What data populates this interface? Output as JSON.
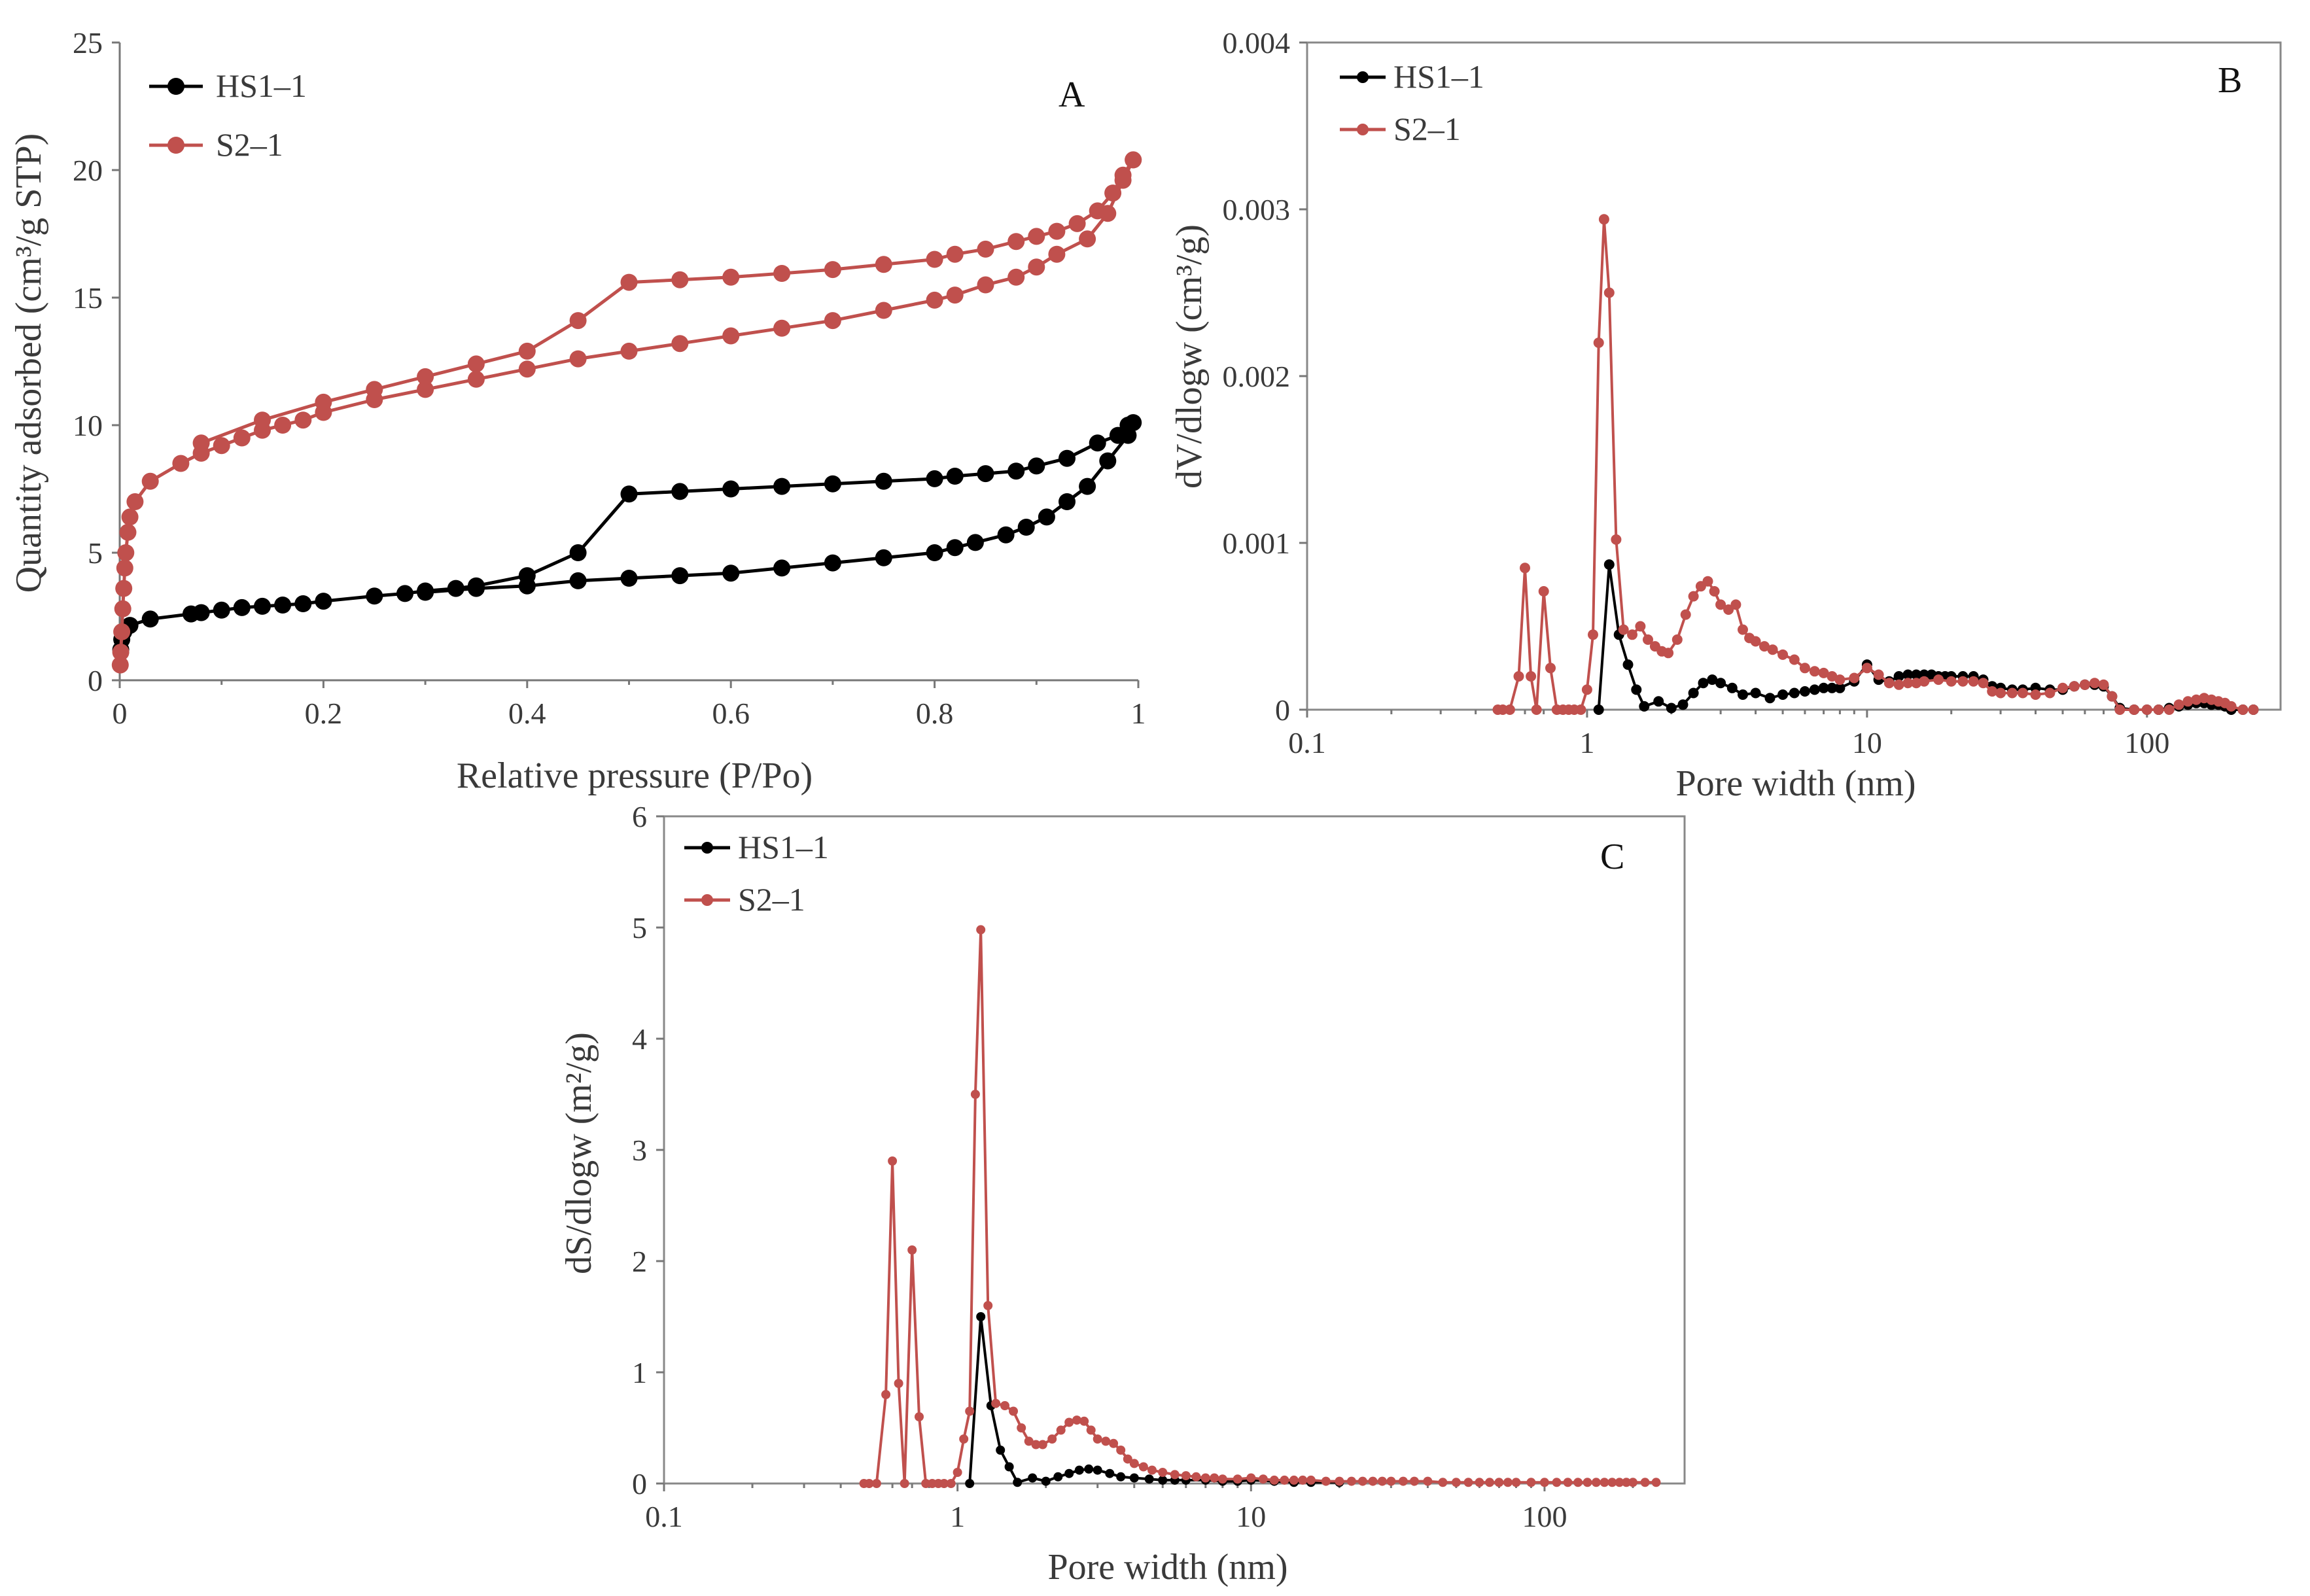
{
  "colors": {
    "hs": "#000000",
    "s2": "#c0504d",
    "axis": "#777777"
  },
  "chart_data": [
    {
      "id": "A",
      "type": "line",
      "panel_label": "A",
      "xlabel": "Relative pressure (P/Po)",
      "ylabel": "Quantity adsorbed (cm³/g STP)",
      "xscale": "linear",
      "xlim": [
        0,
        1
      ],
      "ylim": [
        0,
        25
      ],
      "xticks": [
        0,
        0.2,
        0.4,
        0.6,
        0.8,
        1
      ],
      "xtick_labels": [
        "0",
        "0.2",
        "0.4",
        "0.6",
        "0.8",
        "1"
      ],
      "yticks": [
        0,
        5,
        10,
        15,
        20,
        25
      ],
      "ytick_labels": [
        "0",
        "5",
        "10",
        "15",
        "20",
        "25"
      ],
      "legend_position": "top-left",
      "series": [
        {
          "name": "HS1–1",
          "color": "#000000",
          "x": [
            0.001,
            0.002,
            0.004,
            0.01,
            0.03,
            0.07,
            0.08,
            0.1,
            0.12,
            0.14,
            0.16,
            0.18,
            0.2,
            0.25,
            0.28,
            0.3,
            0.33,
            0.35,
            0.4,
            0.45,
            0.5,
            0.55,
            0.6,
            0.65,
            0.7,
            0.75,
            0.8,
            0.82,
            0.85,
            0.88,
            0.9,
            0.93,
            0.96,
            0.98,
            0.99,
            0.995,
            0.99,
            0.97,
            0.95,
            0.93,
            0.91,
            0.89,
            0.87,
            0.84,
            0.82,
            0.8,
            0.75,
            0.7,
            0.65,
            0.6,
            0.55,
            0.5,
            0.45,
            0.4,
            0.35,
            0.3
          ],
          "values": [
            1.2,
            1.6,
            1.9,
            2.15,
            2.4,
            2.6,
            2.65,
            2.75,
            2.85,
            2.9,
            2.95,
            3.0,
            3.1,
            3.3,
            3.4,
            3.5,
            3.6,
            3.7,
            4.1,
            5.0,
            7.3,
            7.4,
            7.5,
            7.6,
            7.7,
            7.8,
            7.9,
            8.0,
            8.1,
            8.2,
            8.4,
            8.7,
            9.3,
            9.6,
            10.0,
            10.1,
            9.6,
            8.6,
            7.6,
            7.0,
            6.4,
            6.0,
            5.7,
            5.4,
            5.2,
            5.0,
            4.8,
            4.6,
            4.4,
            4.2,
            4.1,
            4.0,
            3.9,
            3.7,
            3.6,
            3.45
          ]
        },
        {
          "name": "S2–1",
          "color": "#c0504d",
          "x": [
            0.0005,
            0.001,
            0.002,
            0.003,
            0.004,
            0.005,
            0.006,
            0.008,
            0.01,
            0.015,
            0.03,
            0.06,
            0.08,
            0.1,
            0.12,
            0.14,
            0.16,
            0.18,
            0.2,
            0.25,
            0.3,
            0.35,
            0.4,
            0.45,
            0.5,
            0.55,
            0.6,
            0.65,
            0.7,
            0.75,
            0.8,
            0.82,
            0.85,
            0.88,
            0.9,
            0.92,
            0.95,
            0.97,
            0.985,
            0.995,
            0.995,
            0.985,
            0.975,
            0.96,
            0.94,
            0.92,
            0.9,
            0.88,
            0.85,
            0.82,
            0.8,
            0.75,
            0.7,
            0.65,
            0.6,
            0.55,
            0.5,
            0.45,
            0.4,
            0.35,
            0.3,
            0.25,
            0.2,
            0.14,
            0.08
          ],
          "values": [
            0.6,
            1.1,
            1.9,
            2.8,
            3.6,
            4.4,
            5.0,
            5.8,
            6.4,
            7.0,
            7.8,
            8.5,
            8.9,
            9.2,
            9.5,
            9.8,
            10.0,
            10.2,
            10.5,
            11.0,
            11.4,
            11.8,
            12.2,
            12.6,
            12.9,
            13.2,
            13.5,
            13.8,
            14.1,
            14.5,
            14.9,
            15.1,
            15.5,
            15.8,
            16.2,
            16.7,
            17.3,
            18.3,
            19.6,
            20.4,
            20.4,
            19.8,
            19.1,
            18.4,
            17.9,
            17.6,
            17.4,
            17.2,
            16.9,
            16.7,
            16.5,
            16.3,
            16.1,
            15.95,
            15.8,
            15.7,
            15.6,
            14.1,
            12.9,
            12.4,
            11.9,
            11.4,
            10.9,
            10.2,
            9.3
          ]
        }
      ]
    },
    {
      "id": "B",
      "type": "line",
      "panel_label": "B",
      "xlabel": "Pore width (nm)",
      "ylabel": "dV/dlogw (cm³/g)",
      "xscale": "log",
      "xlim": [
        0.1,
        300
      ],
      "ylim": [
        0,
        0.004
      ],
      "xticks": [
        0.1,
        1,
        10,
        100
      ],
      "xtick_labels": [
        "0.1",
        "1",
        "10",
        "100"
      ],
      "yticks": [
        0,
        0.001,
        0.002,
        0.003,
        0.004
      ],
      "ytick_labels": [
        "0",
        "0.001",
        "0.002",
        "0.003",
        "0.004"
      ],
      "legend_position": "top-left",
      "series": [
        {
          "name": "HS1–1",
          "color": "#000000",
          "x": [
            1.1,
            1.2,
            1.3,
            1.4,
            1.5,
            1.6,
            1.8,
            2.0,
            2.2,
            2.4,
            2.6,
            2.8,
            3.0,
            3.3,
            3.6,
            4.0,
            4.5,
            5.0,
            5.5,
            6.0,
            6.5,
            7.0,
            7.5,
            8.0,
            9.0,
            10,
            11,
            12,
            13,
            14,
            15,
            16,
            17,
            18,
            19,
            20,
            22,
            24,
            26,
            28,
            30,
            33,
            36,
            40,
            45,
            50,
            55,
            60,
            65,
            70,
            75,
            80,
            90,
            100,
            110,
            120,
            130,
            140,
            150,
            160,
            170,
            180,
            190,
            200,
            220,
            240
          ],
          "values": [
            0.0,
            0.00087,
            0.00045,
            0.00027,
            0.00012,
            2e-05,
            5e-05,
            1e-05,
            3e-05,
            0.0001,
            0.00016,
            0.00018,
            0.00016,
            0.00013,
            9e-05,
            0.0001,
            7e-05,
            9e-05,
            0.0001,
            0.00011,
            0.00012,
            0.00013,
            0.00013,
            0.00013,
            0.00017,
            0.00027,
            0.00018,
            0.00017,
            0.0002,
            0.00021,
            0.00021,
            0.00021,
            0.00021,
            0.0002,
            0.0002,
            0.0002,
            0.0002,
            0.0002,
            0.00018,
            0.00014,
            0.00013,
            0.00012,
            0.00012,
            0.00013,
            0.00012,
            0.00012,
            0.00014,
            0.00015,
            0.00015,
            0.00014,
            8e-05,
            1e-05,
            0.0,
            0.0,
            0.0,
            1e-05,
            2e-05,
            3e-05,
            4e-05,
            4e-05,
            3e-05,
            3e-05,
            2e-05,
            0.0,
            0.0,
            0.0
          ]
        },
        {
          "name": "S2–1",
          "color": "#c0504d",
          "x": [
            0.48,
            0.5,
            0.53,
            0.57,
            0.6,
            0.63,
            0.66,
            0.7,
            0.74,
            0.78,
            0.82,
            0.86,
            0.9,
            0.95,
            1.0,
            1.05,
            1.1,
            1.15,
            1.2,
            1.27,
            1.35,
            1.45,
            1.55,
            1.65,
            1.75,
            1.85,
            1.95,
            2.1,
            2.25,
            2.4,
            2.55,
            2.7,
            2.85,
            3.0,
            3.2,
            3.4,
            3.6,
            3.8,
            4.0,
            4.3,
            4.6,
            5.0,
            5.5,
            6.0,
            6.5,
            7.0,
            7.5,
            8.0,
            9.0,
            10,
            11,
            12,
            13,
            14,
            15,
            16,
            18,
            20,
            22,
            24,
            26,
            28,
            30,
            33,
            36,
            40,
            45,
            50,
            55,
            60,
            65,
            70,
            75,
            80,
            90,
            100,
            110,
            120,
            130,
            140,
            150,
            160,
            170,
            180,
            190,
            200,
            220,
            240
          ],
          "values": [
            0.0,
            0.0,
            0.0,
            0.0002,
            0.00085,
            0.0002,
            0.0,
            0.00071,
            0.00025,
            0.0,
            0.0,
            0.0,
            0.0,
            0.0,
            0.00012,
            0.00045,
            0.0022,
            0.00294,
            0.0025,
            0.00102,
            0.00048,
            0.00045,
            0.0005,
            0.00042,
            0.00038,
            0.00035,
            0.00034,
            0.00042,
            0.00057,
            0.00068,
            0.00074,
            0.00077,
            0.00071,
            0.00063,
            0.0006,
            0.00063,
            0.00048,
            0.00043,
            0.00041,
            0.00038,
            0.00036,
            0.00033,
            0.0003,
            0.00025,
            0.00023,
            0.00022,
            0.0002,
            0.00018,
            0.00019,
            0.00025,
            0.00021,
            0.00016,
            0.00015,
            0.00016,
            0.00016,
            0.00017,
            0.00018,
            0.00017,
            0.00017,
            0.00017,
            0.00016,
            0.00011,
            0.0001,
            0.0001,
            0.0001,
            9e-05,
            0.0001,
            0.00013,
            0.00014,
            0.00015,
            0.00016,
            0.00015,
            8e-05,
            0.0,
            0.0,
            0.0,
            0.0,
            0.0,
            3e-05,
            5e-05,
            6e-05,
            7e-05,
            6e-05,
            5e-05,
            4e-05,
            2e-05,
            0.0,
            0.0
          ]
        }
      ]
    },
    {
      "id": "C",
      "type": "line",
      "panel_label": "C",
      "xlabel": "Pore width (nm)",
      "ylabel": "dS/dlogw (m²/g)",
      "xscale": "log",
      "xlim": [
        0.1,
        300
      ],
      "ylim": [
        0,
        6
      ],
      "xticks": [
        0.1,
        1,
        10,
        100
      ],
      "xtick_labels": [
        "0.1",
        "1",
        "10",
        "100"
      ],
      "yticks": [
        0,
        1,
        2,
        3,
        4,
        5,
        6
      ],
      "ytick_labels": [
        "0",
        "1",
        "2",
        "3",
        "4",
        "5",
        "6"
      ],
      "legend_position": "top-left",
      "series": [
        {
          "name": "HS1–1",
          "color": "#000000",
          "x": [
            1.1,
            1.2,
            1.3,
            1.4,
            1.5,
            1.6,
            1.8,
            2.0,
            2.2,
            2.4,
            2.6,
            2.8,
            3.0,
            3.3,
            3.6,
            4.0,
            4.5,
            5.0,
            5.5,
            6.0,
            7.0,
            8.0,
            9.0,
            10,
            12,
            14,
            16,
            20
          ],
          "values": [
            0.0,
            1.5,
            0.7,
            0.3,
            0.15,
            0.01,
            0.05,
            0.02,
            0.06,
            0.09,
            0.12,
            0.13,
            0.12,
            0.09,
            0.06,
            0.05,
            0.04,
            0.03,
            0.03,
            0.03,
            0.03,
            0.02,
            0.02,
            0.03,
            0.02,
            0.01,
            0.01,
            0.01
          ]
        },
        {
          "name": "S2–1",
          "color": "#c0504d",
          "x": [
            0.48,
            0.5,
            0.53,
            0.57,
            0.6,
            0.63,
            0.66,
            0.7,
            0.74,
            0.78,
            0.82,
            0.86,
            0.9,
            0.95,
            1.0,
            1.05,
            1.1,
            1.15,
            1.2,
            1.27,
            1.35,
            1.45,
            1.55,
            1.65,
            1.75,
            1.85,
            1.95,
            2.1,
            2.25,
            2.4,
            2.55,
            2.7,
            2.85,
            3.0,
            3.2,
            3.4,
            3.6,
            3.8,
            4.0,
            4.3,
            4.6,
            5.0,
            5.5,
            6.0,
            6.5,
            7.0,
            7.5,
            8.0,
            9.0,
            10,
            11,
            12,
            13,
            14,
            15,
            16,
            18,
            20,
            22,
            24,
            26,
            28,
            30,
            33,
            36,
            40,
            45,
            50,
            55,
            60,
            65,
            70,
            75,
            80,
            90,
            100,
            110,
            120,
            130,
            140,
            150,
            160,
            170,
            180,
            190,
            200,
            220,
            240
          ],
          "values": [
            0.0,
            0.0,
            0.0,
            0.8,
            2.9,
            0.9,
            0.0,
            2.1,
            0.6,
            0.0,
            0.0,
            0.0,
            0.0,
            0.0,
            0.1,
            0.4,
            0.65,
            3.5,
            4.98,
            1.6,
            0.72,
            0.7,
            0.65,
            0.5,
            0.38,
            0.35,
            0.35,
            0.4,
            0.48,
            0.55,
            0.57,
            0.56,
            0.48,
            0.4,
            0.38,
            0.36,
            0.3,
            0.22,
            0.18,
            0.15,
            0.12,
            0.1,
            0.08,
            0.07,
            0.06,
            0.05,
            0.05,
            0.04,
            0.04,
            0.05,
            0.04,
            0.03,
            0.03,
            0.03,
            0.03,
            0.03,
            0.02,
            0.02,
            0.02,
            0.02,
            0.02,
            0.02,
            0.02,
            0.02,
            0.02,
            0.02,
            0.01,
            0.01,
            0.01,
            0.01,
            0.01,
            0.01,
            0.01,
            0.01,
            0.01,
            0.01,
            0.01,
            0.01,
            0.01,
            0.01,
            0.01,
            0.01,
            0.01,
            0.01,
            0.01,
            0.01,
            0.01,
            0.01
          ]
        }
      ]
    }
  ]
}
